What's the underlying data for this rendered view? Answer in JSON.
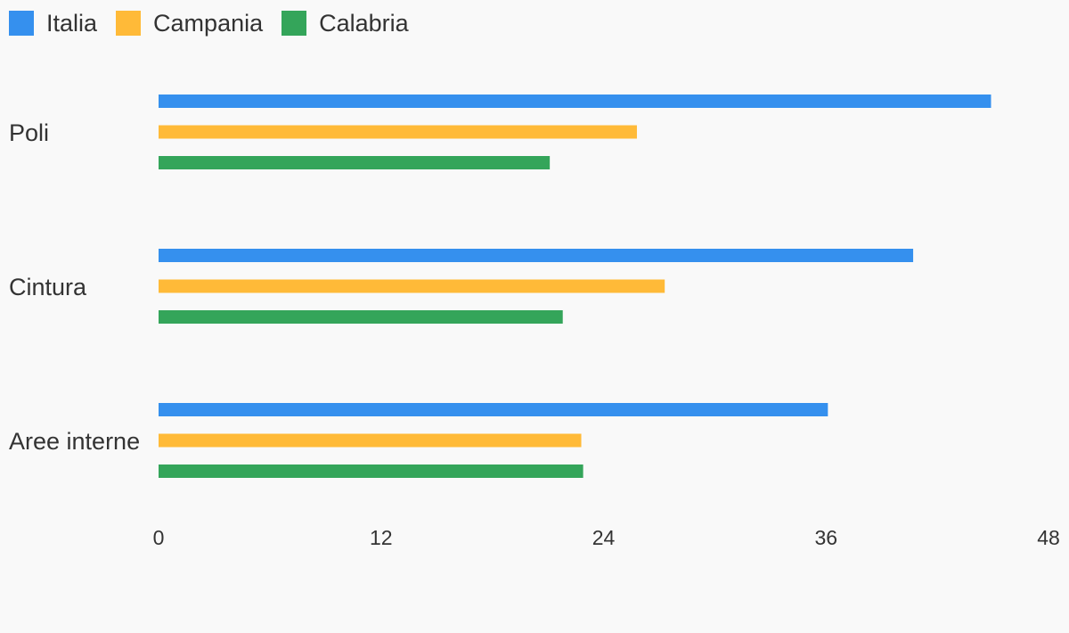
{
  "chart_data": {
    "type": "bar",
    "orientation": "horizontal",
    "categories": [
      "Poli",
      "Cintura",
      "Aree interne"
    ],
    "series": [
      {
        "name": "Italia",
        "color": "#3590ee",
        "values": [
          44.9,
          40.7,
          36.1
        ]
      },
      {
        "name": "Campania",
        "color": "#ffba38",
        "values": [
          25.8,
          27.3,
          22.8
        ]
      },
      {
        "name": "Calabria",
        "color": "#34a55a",
        "values": [
          21.1,
          21.8,
          22.9
        ]
      }
    ],
    "xlim": [
      0,
      48
    ],
    "xticks": [
      "0",
      "12",
      "24",
      "36",
      "48"
    ],
    "legend_position": "top-left",
    "grid": false
  }
}
